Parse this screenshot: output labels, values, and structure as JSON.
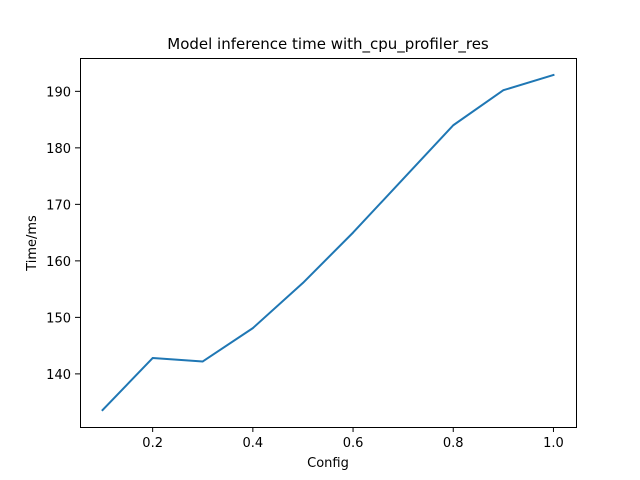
{
  "chart_data": {
    "type": "line",
    "title": "Model inference time with_cpu_profiler_res",
    "xlabel": "Config",
    "ylabel": "Time/ms",
    "x": [
      0.1,
      0.2,
      0.3,
      0.4,
      0.5,
      0.6,
      0.7,
      0.8,
      0.9,
      1.0
    ],
    "series": [
      {
        "values": [
          133.6,
          142.8,
          142.2,
          148.1,
          156.1,
          165.0,
          174.5,
          184.0,
          190.2,
          192.9
        ],
        "color": "#1f77b4"
      }
    ],
    "xlim": [
      0.055,
      1.045
    ],
    "ylim": [
      130.6,
      195.9
    ],
    "xticks": [
      0.2,
      0.4,
      0.6,
      0.8,
      1.0
    ],
    "xtick_labels": [
      "0.2",
      "0.4",
      "0.6",
      "0.8",
      "1.0"
    ],
    "yticks": [
      140,
      150,
      160,
      170,
      180,
      190
    ],
    "ytick_labels": [
      "140",
      "150",
      "160",
      "170",
      "180",
      "190"
    ],
    "grid": false,
    "legend": "none"
  }
}
